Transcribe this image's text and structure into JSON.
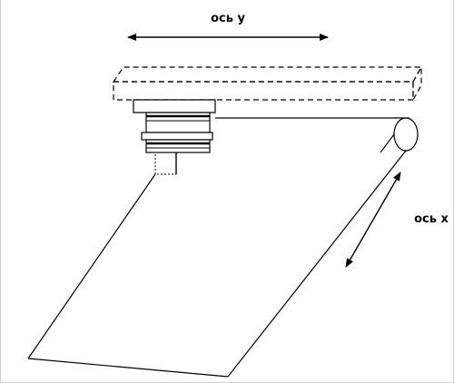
{
  "labels": {
    "axis_y": "ось y",
    "axis_x": "ось x"
  },
  "colors": {
    "line": "#000000",
    "background": "#ffffff",
    "frame": "#cfcfcf"
  }
}
